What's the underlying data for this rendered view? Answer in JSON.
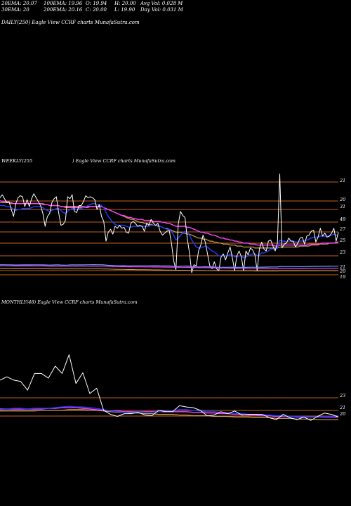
{
  "header": {
    "ema20": "20EMA: 20.07",
    "ema100": "100EMA: 19.96",
    "open": "O: 19.94",
    "high": "H: 20.00",
    "avgvol": "Avg Vol: 0.028 M",
    "ema30": "30EMA: 20",
    "ema200": "200EMA: 20.16",
    "close": "C: 20.00",
    "low": "L: 19.90",
    "dayvol": "Day Vol: 0.031 M"
  },
  "panels": {
    "daily": {
      "title": "DAILY(250) Eagle  View  CCRF charts MunafaSutra.com"
    },
    "weekly": {
      "title_left": "WEEKLY(255",
      "title_right": ") Eagle  View  CCRF charts MunafaSutra.com"
    },
    "monthly": {
      "title": "MONTHLY(48) Eagle  View  CCRF charts MunafaSutra.com"
    }
  },
  "colors": {
    "background": "#000000",
    "price": "#ffffff",
    "ema_short": "#1e3fff",
    "ema_mid": "#ff40ff",
    "ema_long": "#d0a050",
    "ema_extra": "#6aa0ff",
    "hline": "#c06020"
  },
  "chart_data": [
    {
      "type": "line",
      "name": "weekly",
      "tick_labels": [
        "21",
        "20",
        "31",
        "49",
        "27",
        "25",
        "23",
        "21",
        "20",
        "19"
      ],
      "price": [
        27.4,
        27.7,
        27.3,
        26.9,
        27.0,
        26.2,
        25.5,
        26.8,
        27.4,
        27.6,
        27.5,
        26.5,
        27.2,
        26.5,
        27.3,
        27.8,
        27.4,
        27.0,
        26.6,
        25.8,
        24.5,
        25.5,
        25.8,
        26.9,
        27.3,
        27.5,
        25.9,
        24.6,
        24.7,
        25.1,
        27.5,
        27.3,
        27.7,
        26.0,
        25.9,
        26.6,
        26.6,
        27.0,
        27.6,
        27.4,
        27.5,
        27.4,
        27.2,
        26.2,
        26.7,
        25.5,
        25.0,
        23.0,
        23.9,
        24.2,
        23.7,
        24.5,
        24.3,
        24.6,
        24.3,
        24.4,
        23.9,
        23.8,
        24.8,
        25.0,
        24.8,
        24.5,
        24.6,
        24.5,
        24.0,
        24.8,
        24.6,
        25.2,
        24.8,
        24.6,
        24.8,
        24.0,
        23.6,
        23.8,
        24.0,
        24.1,
        22.8,
        21.0,
        20.1,
        24.7,
        26.0,
        25.6,
        25.4,
        23.3,
        21.8,
        19.8,
        20.6,
        20.5,
        22.0,
        22.6,
        23.6,
        22.9,
        21.7,
        20.5,
        20.2,
        20.9,
        20.2,
        20.0,
        21.4,
        21.7,
        21.1,
        21.8,
        22.4,
        21.3,
        20.0,
        21.5,
        22.0,
        21.4,
        20.0,
        22.0,
        21.6,
        22.3,
        22.1,
        21.6,
        20.0,
        22.2,
        22.9,
        22.2,
        22.0,
        23.0,
        23.1,
        22.5,
        22.0,
        22.8,
        29.8,
        22.3,
        22.7,
        22.8,
        23.3,
        23.0,
        23.0,
        22.4,
        22.8,
        23.3,
        23.4,
        22.7,
        23.5,
        23.6,
        24.0,
        24.1,
        22.9,
        23.4,
        24.3,
        23.5,
        23.8,
        23.4,
        23.5,
        23.8,
        24.3,
        23.0,
        23.9
      ],
      "ema_short": [
        26.6,
        26.6,
        26.6,
        26.5,
        26.5,
        26.4,
        26.2,
        26.1,
        26.2,
        26.2,
        26.3,
        26.3,
        26.3,
        26.3,
        26.4,
        26.5,
        26.5,
        26.5,
        26.5,
        26.4,
        26.2,
        26.1,
        26.0,
        26.1,
        26.2,
        26.3,
        26.3,
        26.1,
        25.9,
        25.8,
        26.0,
        26.2,
        26.3,
        26.3,
        26.2,
        26.3,
        26.3,
        26.4,
        26.5,
        26.6,
        26.7,
        26.8,
        26.8,
        26.7,
        26.7,
        26.6,
        26.4,
        25.9,
        25.5,
        25.2,
        24.9,
        24.7,
        24.6,
        24.6,
        24.6,
        24.6,
        24.5,
        24.4,
        24.4,
        24.5,
        24.5,
        24.5,
        24.5,
        24.5,
        24.5,
        24.5,
        24.5,
        24.6,
        24.6,
        24.6,
        24.6,
        24.5,
        24.4,
        24.3,
        24.2,
        24.2,
        24.0,
        23.6,
        23.1,
        23.3,
        23.6,
        23.8,
        24.0,
        23.9,
        23.6,
        23.1,
        22.8,
        22.4,
        22.3,
        22.3,
        22.4,
        22.5,
        22.4,
        22.2,
        22.0,
        21.9,
        21.7,
        21.5,
        21.5,
        21.5,
        21.5,
        21.5,
        21.7,
        21.6,
        21.4,
        21.4,
        21.5,
        21.5,
        21.3,
        21.4,
        21.5,
        21.6,
        21.7,
        21.7,
        21.5,
        21.6,
        21.8,
        21.8,
        21.9,
        22.0,
        22.2,
        22.2,
        22.2,
        22.3,
        23.1,
        23.0,
        23.0,
        22.9,
        23.0,
        23.0,
        23.0,
        22.9,
        22.9,
        23.0,
        23.0,
        23.0,
        23.1,
        23.2,
        23.3,
        23.4,
        23.4,
        23.4,
        23.5,
        23.5,
        23.5,
        23.5,
        23.5,
        23.6,
        23.7,
        23.6,
        23.6
      ],
      "ema_mid": [
        27.1,
        27.0,
        27.0,
        27.0,
        26.9,
        26.9,
        26.8,
        26.8,
        26.8,
        26.8,
        26.8,
        26.8,
        26.8,
        26.8,
        26.8,
        26.8,
        26.8,
        26.8,
        26.8,
        26.8,
        26.7,
        26.7,
        26.6,
        26.6,
        26.6,
        26.6,
        26.6,
        26.5,
        26.5,
        26.4,
        26.4,
        26.4,
        26.4,
        26.4,
        26.4,
        26.4,
        26.4,
        26.4,
        26.4,
        26.4,
        26.5,
        26.5,
        26.5,
        26.5,
        26.5,
        26.5,
        26.4,
        26.3,
        26.2,
        26.1,
        26.0,
        25.9,
        25.8,
        25.7,
        25.6,
        25.6,
        25.5,
        25.4,
        25.4,
        25.3,
        25.3,
        25.2,
        25.2,
        25.2,
        25.1,
        25.1,
        25.1,
        25.1,
        25.0,
        25.0,
        25.0,
        25.0,
        24.9,
        24.9,
        24.8,
        24.8,
        24.7,
        24.6,
        24.5,
        24.5,
        24.5,
        24.5,
        24.5,
        24.4,
        24.4,
        24.3,
        24.2,
        24.1,
        24.0,
        23.9,
        23.9,
        23.8,
        23.8,
        23.7,
        23.6,
        23.6,
        23.5,
        23.4,
        23.3,
        23.3,
        23.2,
        23.2,
        23.1,
        23.1,
        23.0,
        23.0,
        22.9,
        22.9,
        22.8,
        22.8,
        22.8,
        22.7,
        22.7,
        22.7,
        22.6,
        22.6,
        22.6,
        22.6,
        22.6,
        22.6,
        22.6,
        22.6,
        22.5,
        22.5,
        22.6,
        22.6,
        22.6,
        22.6,
        22.6,
        22.6,
        22.6,
        22.6,
        22.6,
        22.6,
        22.6,
        22.6,
        22.6,
        22.7,
        22.7,
        22.7,
        22.7,
        22.7,
        22.7,
        22.8,
        22.8,
        22.8,
        22.8,
        22.8,
        22.8,
        22.9,
        22.9
      ],
      "ema_long": [
        26.9,
        26.9,
        26.9,
        26.9,
        26.9,
        26.8,
        26.8,
        26.8,
        26.8,
        26.8,
        26.8,
        26.8,
        26.8,
        26.8,
        26.8,
        26.8,
        26.8,
        26.8,
        26.8,
        26.7,
        26.7,
        26.7,
        26.6,
        26.6,
        26.6,
        26.6,
        26.6,
        26.5,
        26.5,
        26.5,
        26.5,
        26.5,
        26.5,
        26.5,
        26.5,
        26.5,
        26.5,
        26.5,
        26.5,
        26.5,
        26.5,
        26.5,
        26.5,
        26.5,
        26.5,
        26.5,
        26.4,
        26.3,
        26.2,
        26.1,
        26.0,
        25.9,
        25.8,
        25.7,
        25.6,
        25.5,
        25.4,
        25.3,
        25.2,
        25.2,
        25.1,
        25.0,
        24.9,
        24.9,
        24.8,
        24.8,
        24.7,
        24.7,
        24.6,
        24.6,
        24.5,
        24.5,
        24.4,
        24.3,
        24.3,
        24.2,
        24.1,
        24.0,
        23.9,
        23.9,
        23.9,
        23.8,
        23.8,
        23.7,
        23.7,
        23.6,
        23.5,
        23.4,
        23.3,
        23.3,
        23.2,
        23.2,
        23.1,
        23.0,
        23.0,
        22.9,
        22.9,
        22.8,
        22.8,
        22.7,
        22.7,
        22.7,
        22.6,
        22.6,
        22.6,
        22.5,
        22.5,
        22.5,
        22.4,
        22.4,
        22.4,
        22.4,
        22.4,
        22.3,
        22.3,
        22.3,
        22.3,
        22.3,
        22.3,
        22.3,
        22.3,
        22.3,
        22.3,
        22.3,
        22.4,
        22.4,
        22.4,
        22.4,
        22.4,
        22.4,
        22.4,
        22.4,
        22.4,
        22.5,
        22.5,
        22.5,
        22.5,
        22.5,
        22.6,
        22.6,
        22.6,
        22.6,
        22.7,
        22.7,
        22.7,
        22.7,
        22.8,
        22.8,
        22.8,
        22.8,
        22.9
      ]
    },
    {
      "type": "line",
      "name": "monthly",
      "tick_labels": [
        "23",
        "21",
        "20"
      ],
      "price": [
        26.0,
        26.5,
        26.0,
        25.8,
        24.5,
        27.0,
        27.0,
        26.3,
        28.1,
        27.0,
        29.8,
        25.5,
        27.1,
        24.0,
        24.8,
        21.5,
        20.9,
        20.6,
        21.0,
        21.0,
        21.2,
        20.8,
        20.7,
        21.5,
        21.3,
        21.3,
        22.2,
        22.0,
        21.9,
        21.5,
        20.7,
        20.8,
        21.3,
        21.0,
        21.4,
        20.8,
        20.9,
        20.9,
        20.9,
        20.4,
        20.1,
        20.9,
        20.4,
        20.1,
        20.5,
        20.0,
        20.6,
        21.1,
        20.9,
        20.5
      ],
      "ema_short": [
        21.6,
        21.7,
        21.8,
        21.8,
        21.7,
        21.8,
        21.8,
        21.8,
        21.9,
        22.0,
        22.1,
        22.0,
        22.0,
        21.9,
        21.8,
        21.6,
        21.4,
        21.3,
        21.2,
        21.2,
        21.3,
        21.2,
        21.2,
        21.3,
        21.4,
        21.5,
        21.6,
        21.6,
        21.5,
        21.4,
        21.3,
        21.3,
        21.2,
        21.1,
        21.0,
        21.0,
        20.9,
        20.9,
        20.8,
        20.8,
        20.7,
        20.7,
        20.6,
        20.6,
        20.6,
        20.5,
        20.5,
        20.6,
        20.6,
        20.7
      ],
      "ema_mid": [
        21.7,
        21.7,
        21.7,
        21.7,
        21.7,
        21.7,
        21.7,
        21.8,
        21.8,
        21.9,
        21.9,
        21.9,
        21.8,
        21.7,
        21.6,
        21.5,
        21.4,
        21.4,
        21.3,
        21.3,
        21.3,
        21.3,
        21.3,
        21.3,
        21.3,
        21.3,
        21.3,
        21.3,
        21.2,
        21.2,
        21.1,
        21.1,
        21.0,
        21.0,
        20.9,
        20.9,
        20.8,
        20.8,
        20.7,
        20.7,
        20.6,
        20.6,
        20.6,
        20.5,
        20.5,
        20.5,
        20.5,
        20.5,
        20.5,
        20.5
      ],
      "ema_long": [
        21.4,
        21.4,
        21.4,
        21.4,
        21.4,
        21.4,
        21.5,
        21.5,
        21.5,
        21.5,
        21.6,
        21.6,
        21.6,
        21.5,
        21.5,
        21.4,
        21.3,
        21.2,
        21.2,
        21.1,
        21.1,
        21.0,
        21.0,
        20.9,
        20.9,
        20.9,
        20.8,
        20.8,
        20.7,
        20.7,
        20.7,
        20.6,
        20.6,
        20.6,
        20.5,
        20.5,
        20.5,
        20.4,
        20.4,
        20.4,
        20.3,
        20.3,
        20.3,
        20.2,
        20.2,
        20.2,
        20.1,
        20.1,
        20.1,
        20.1
      ]
    }
  ]
}
